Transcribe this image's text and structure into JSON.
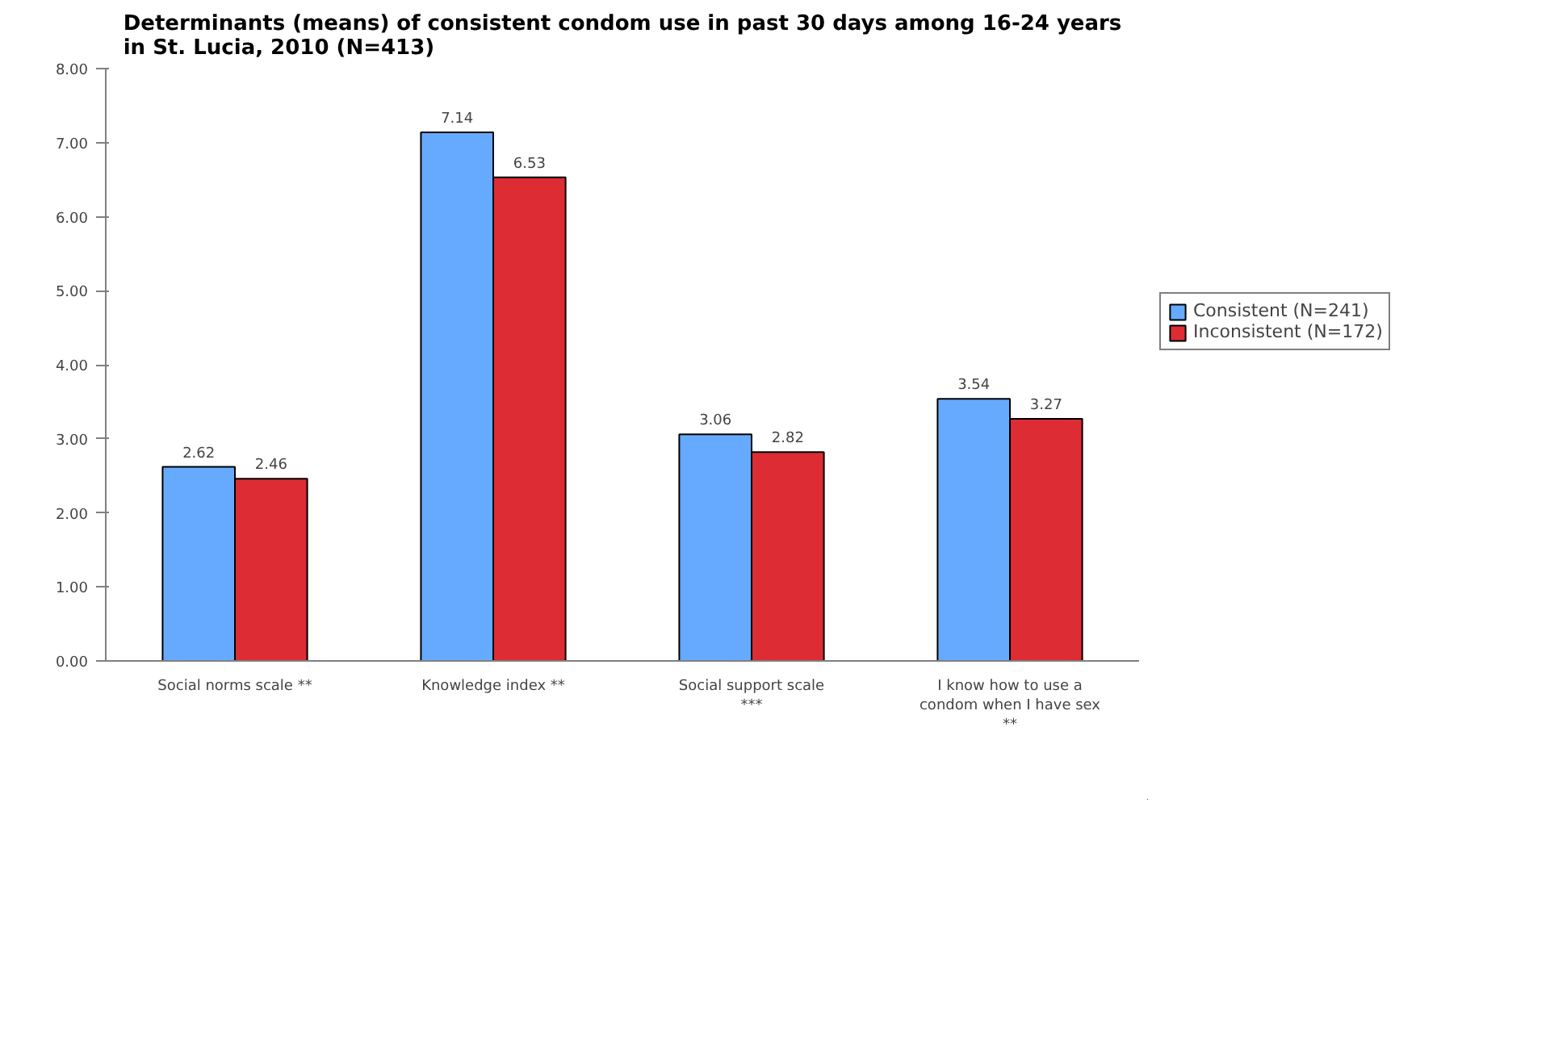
{
  "chart_data": {
    "type": "bar",
    "title": "Determinants (means) of consistent condom use in past 30 days among 16-24 years in St. Lucia, 2010 (N=413)",
    "categories": [
      "Social norms scale **",
      "Knowledge index **",
      "Social support scale ***",
      "I know how to use a condom when I have sex **"
    ],
    "series": [
      {
        "name": "Consistent (N=241)",
        "color": "#66aaff",
        "values": [
          2.62,
          7.14,
          3.06,
          3.54
        ]
      },
      {
        "name": "Inconsistent (N=172)",
        "color": "#dd2c33",
        "values": [
          2.46,
          6.53,
          2.82,
          3.27
        ]
      }
    ],
    "ylim": [
      0,
      8
    ],
    "yticks": [
      {
        "value": 0,
        "label": "0.00"
      },
      {
        "value": 1,
        "label": "1.00"
      },
      {
        "value": 2,
        "label": "2.00"
      },
      {
        "value": 3,
        "label": "3.00"
      },
      {
        "value": 4,
        "label": "4.00"
      },
      {
        "value": 5,
        "label": "5.00"
      },
      {
        "value": 6,
        "label": "6.00"
      },
      {
        "value": 7,
        "label": "7.00"
      },
      {
        "value": 8,
        "label": "8.00"
      }
    ],
    "grid": false,
    "legend": "right",
    "data_labels": true
  }
}
